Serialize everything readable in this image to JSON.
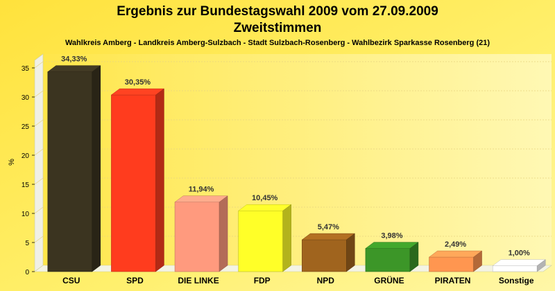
{
  "chart_data": {
    "type": "bar",
    "title": "Ergebnis zur Bundestagswahl 2009 vom 27.09.2009",
    "subtitle": "Zweitstimmen",
    "caption": "Wahlkreis Amberg - Landkreis Amberg-Sulzbach - Stadt Sulzbach-Rosenberg - Wahlbezirk Sparkasse Rosenberg (21)",
    "xlabel": "",
    "ylabel": "%",
    "ylim": [
      0,
      35
    ],
    "yticks": [
      0,
      5,
      10,
      15,
      20,
      25,
      30,
      35
    ],
    "grid": true,
    "categories": [
      "CSU",
      "SPD",
      "DIE LINKE",
      "FDP",
      "NPD",
      "GRÜNE",
      "PIRATEN",
      "Sonstige"
    ],
    "values": [
      34.33,
      30.35,
      11.94,
      10.45,
      5.47,
      3.98,
      2.49,
      1.0
    ],
    "value_labels": [
      "34,33%",
      "30,35%",
      "11,94%",
      "10,45%",
      "5,47%",
      "3,98%",
      "2,49%",
      "1,00%"
    ],
    "colors": [
      "#3b3420",
      "#ff3c1e",
      "#ff9a7e",
      "#ffff28",
      "#a0641e",
      "#3c9628",
      "#ff9650",
      "#ffffff"
    ]
  }
}
